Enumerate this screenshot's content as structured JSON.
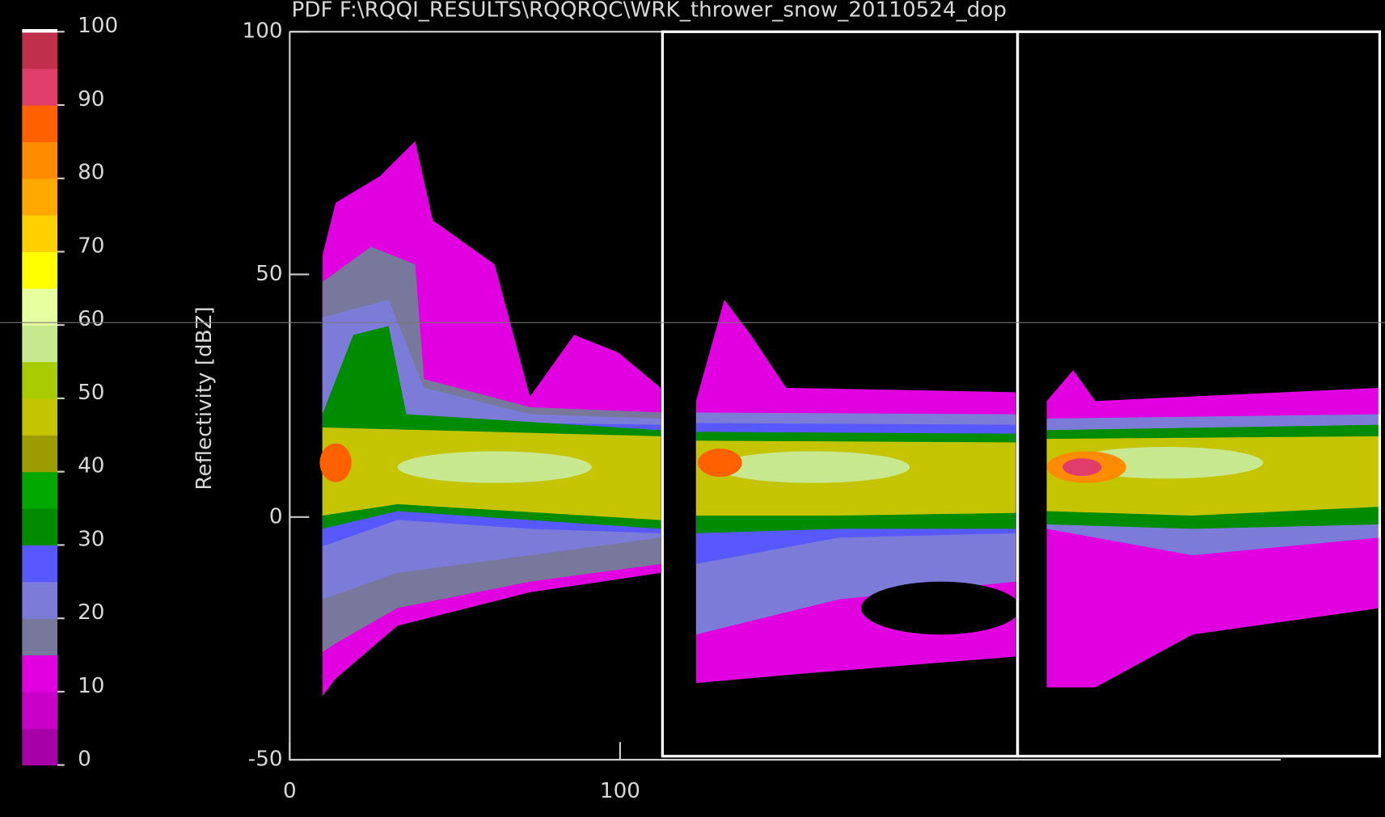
{
  "chart_data": {
    "type": "cfad",
    "title": "PDF F:\\RQQI_RESULTS\\RQQRQC\\WRK_thrower_snow_20110524_dop",
    "y_label": "Reflectivity [dBZ]",
    "xlim": [
      0,
      300
    ],
    "xticks": [
      0,
      100
    ],
    "ylim": [
      -50,
      100
    ],
    "yticks": [
      -50,
      0,
      50,
      100
    ],
    "colorbar": {
      "lim": [
        0,
        100
      ],
      "ticks": [
        0,
        10,
        20,
        30,
        40,
        50,
        60,
        70,
        80,
        90,
        100
      ],
      "colors": [
        "#a800a8",
        "#c800c8",
        "#e000e0",
        "#78789c",
        "#7c7cd8",
        "#5858ff",
        "#008c00",
        "#00a800",
        "#9c9c00",
        "#c4c400",
        "#a8cc00",
        "#c8e890",
        "#e8ffa0",
        "#ffff00",
        "#ffd000",
        "#ffa800",
        "#ff8c00",
        "#ff6000",
        "#e03c6c",
        "#c0304c"
      ]
    }
  }
}
